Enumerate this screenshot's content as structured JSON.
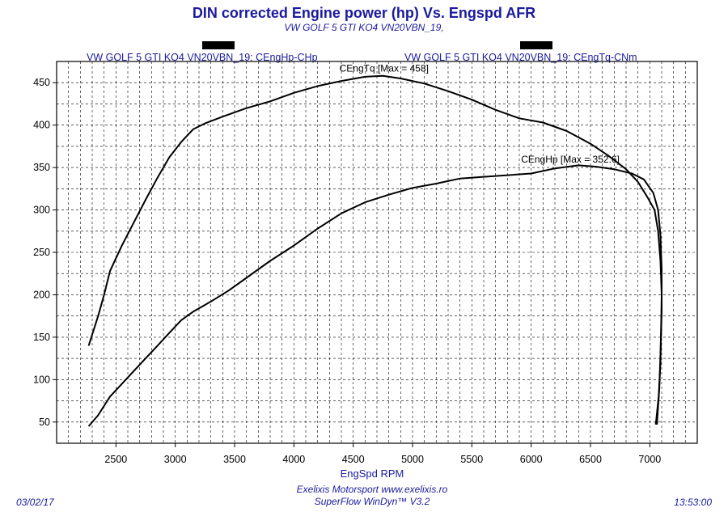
{
  "header": {
    "title": "DIN corrected Engine power (hp) Vs. Engspd AFR",
    "subtitle": "VW GOLF 5 GTI KO4 VN20VBN_19,"
  },
  "footer": {
    "date": "03/02/17",
    "time": "13:53:00",
    "company": "Exelixis Motorsport www.exelixis.ro",
    "software": "SuperFlow WinDyn™ V3.2"
  },
  "chart_data": {
    "type": "line",
    "title": "DIN corrected Engine power (hp) Vs. Engspd AFR",
    "xlabel": "EngSpd RPM",
    "ylabel": "",
    "xlim": [
      2000,
      7400
    ],
    "ylim": [
      25,
      475
    ],
    "x_ticks": [
      "2500",
      "3000",
      "3500",
      "4000",
      "4500",
      "5000",
      "5500",
      "6000",
      "6500",
      "7000"
    ],
    "x_tick_values": [
      2500,
      3000,
      3500,
      4000,
      4500,
      5000,
      5500,
      6000,
      6500,
      7000
    ],
    "y_ticks": [
      "50",
      "100",
      "150",
      "200",
      "250",
      "300",
      "350",
      "400",
      "450"
    ],
    "y_tick_values": [
      50,
      100,
      150,
      200,
      250,
      300,
      350,
      400,
      450
    ],
    "grid": true,
    "series": [
      {
        "name": "VW GOLF 5 GTI KO4 VN20VBN_19: CEngHp-CHp",
        "annotation": "CEngHp [Max = 352.6]",
        "annotation_at": [
          6330,
          356
        ],
        "points": [
          [
            2270,
            45
          ],
          [
            2350,
            58
          ],
          [
            2450,
            80
          ],
          [
            2550,
            95
          ],
          [
            2650,
            110
          ],
          [
            2750,
            125
          ],
          [
            2850,
            140
          ],
          [
            2950,
            155
          ],
          [
            3050,
            170
          ],
          [
            3150,
            180
          ],
          [
            3300,
            192
          ],
          [
            3450,
            205
          ],
          [
            3600,
            220
          ],
          [
            3800,
            240
          ],
          [
            4000,
            258
          ],
          [
            4200,
            278
          ],
          [
            4400,
            296
          ],
          [
            4600,
            309
          ],
          [
            4800,
            318
          ],
          [
            5000,
            326
          ],
          [
            5200,
            331
          ],
          [
            5400,
            337
          ],
          [
            5600,
            339
          ],
          [
            5800,
            341
          ],
          [
            6000,
            343
          ],
          [
            6200,
            349
          ],
          [
            6400,
            352.6
          ],
          [
            6550,
            351
          ],
          [
            6700,
            348
          ],
          [
            6850,
            343
          ],
          [
            6950,
            336
          ],
          [
            7030,
            320
          ],
          [
            7070,
            300
          ],
          [
            7090,
            270
          ],
          [
            7100,
            230
          ],
          [
            7100,
            180
          ],
          [
            7090,
            130
          ],
          [
            7080,
            90
          ],
          [
            7060,
            47
          ]
        ]
      },
      {
        "name": "VW GOLF 5 GTI KO4 VN20VBN_19: CEngTq-CNm",
        "annotation": "CEngTq [Max = 458]",
        "annotation_at": [
          4760,
          463
        ],
        "points": [
          [
            2270,
            140
          ],
          [
            2350,
            175
          ],
          [
            2400,
            200
          ],
          [
            2450,
            228
          ],
          [
            2550,
            258
          ],
          [
            2650,
            285
          ],
          [
            2750,
            312
          ],
          [
            2850,
            338
          ],
          [
            2950,
            362
          ],
          [
            3050,
            380
          ],
          [
            3150,
            395
          ],
          [
            3250,
            402
          ],
          [
            3400,
            410
          ],
          [
            3600,
            420
          ],
          [
            3800,
            428
          ],
          [
            4000,
            438
          ],
          [
            4200,
            446
          ],
          [
            4400,
            452
          ],
          [
            4600,
            457
          ],
          [
            4750,
            458
          ],
          [
            4900,
            455
          ],
          [
            5100,
            449
          ],
          [
            5300,
            440
          ],
          [
            5500,
            430
          ],
          [
            5700,
            418
          ],
          [
            5900,
            408
          ],
          [
            6100,
            403
          ],
          [
            6300,
            393
          ],
          [
            6500,
            378
          ],
          [
            6650,
            364
          ],
          [
            6800,
            348
          ],
          [
            6900,
            333
          ],
          [
            6980,
            315
          ],
          [
            7040,
            300
          ],
          [
            7070,
            275
          ],
          [
            7090,
            240
          ],
          [
            7100,
            200
          ],
          [
            7095,
            160
          ],
          [
            7090,
            120
          ],
          [
            7075,
            80
          ],
          [
            7050,
            47
          ]
        ]
      }
    ]
  }
}
